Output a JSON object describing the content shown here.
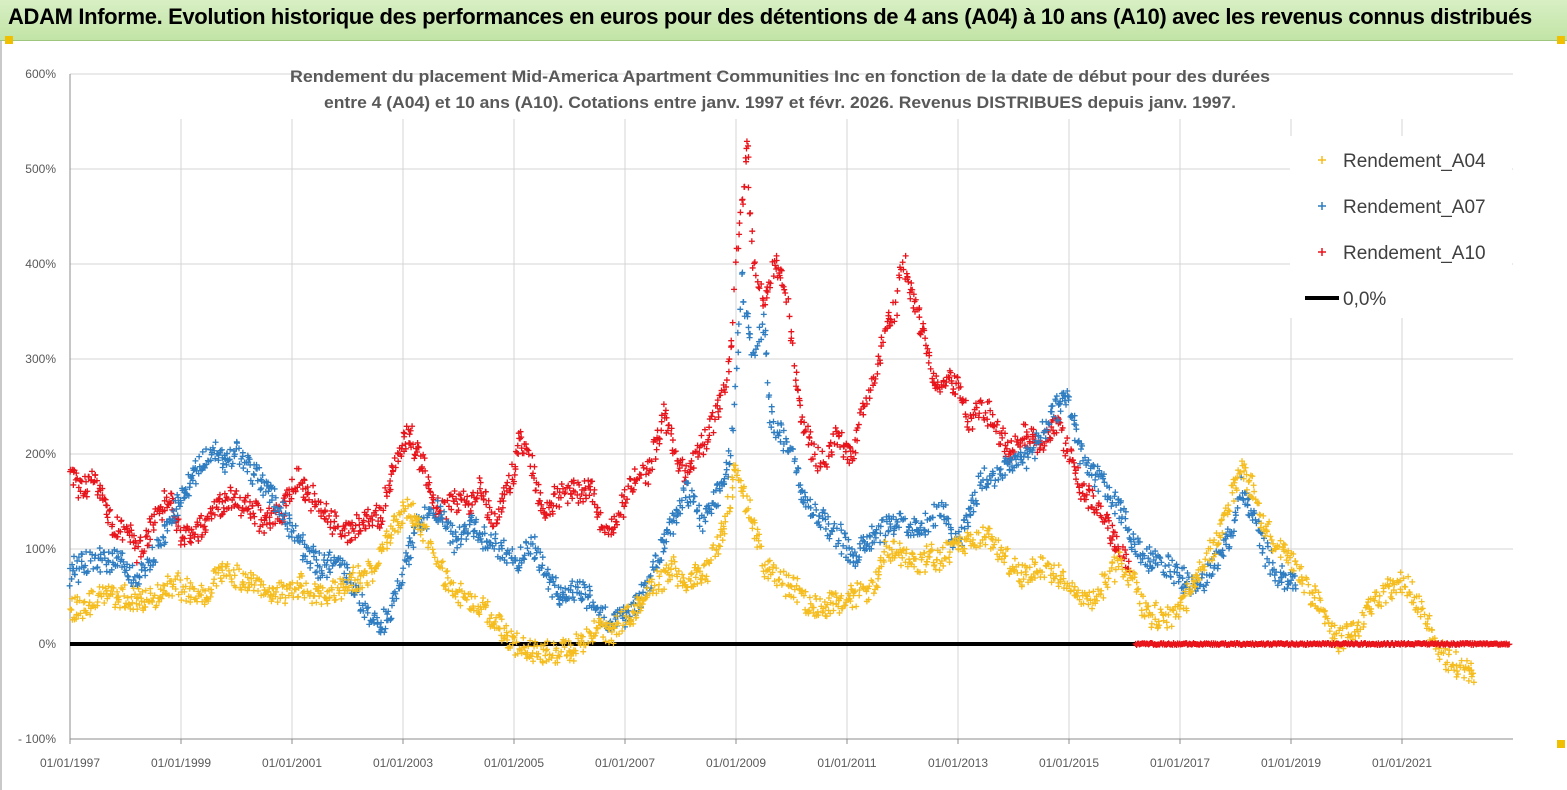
{
  "banner": {
    "title": "ADAM Informe. Evolution historique des performances en euros pour des détentions de 4 ans (A04) à 10 ans (A10) avec les revenus connus distribués"
  },
  "chart_data": {
    "type": "scatter",
    "title_lines": [
      "Rendement du placement Mid-America Apartment Communities Inc en fonction de la date de début pour des durées",
      "entre 4 (A04) et 10 ans (A10).  Cotations entre janv. 1997 et févr. 2026. Revenus DISTRIBUES depuis janv. 1997."
    ],
    "y_ticks": [
      "- 100%",
      "0%",
      "100%",
      "200%",
      "300%",
      "400%",
      "500%",
      "600%"
    ],
    "y_tick_values": [
      -100,
      0,
      100,
      200,
      300,
      400,
      500,
      600
    ],
    "ylim": [
      -100,
      600
    ],
    "x_ticks": [
      "01/01/1997",
      "01/01/1999",
      "01/01/2001",
      "01/01/2003",
      "01/01/2005",
      "01/01/2007",
      "01/01/2009",
      "01/01/2011",
      "01/01/2013",
      "01/01/2015",
      "01/01/2017",
      "01/01/2019",
      "01/01/2021"
    ],
    "x_tick_years": [
      1997,
      1999,
      2001,
      2003,
      2005,
      2007,
      2009,
      2011,
      2013,
      2015,
      2017,
      2019,
      2021
    ],
    "xlim": [
      1997.0,
      2023.0
    ],
    "legend_position": "top-right",
    "series": [
      {
        "name": "Rendement_A04",
        "color": "#f5bd1f",
        "marker": "+",
        "points": [
          [
            1997.0,
            35
          ],
          [
            1997.3,
            40
          ],
          [
            1997.6,
            55
          ],
          [
            1997.9,
            50
          ],
          [
            1998.2,
            45
          ],
          [
            1998.5,
            48
          ],
          [
            1998.8,
            62
          ],
          [
            1999.1,
            58
          ],
          [
            1999.4,
            50
          ],
          [
            1999.7,
            75
          ],
          [
            2000.0,
            72
          ],
          [
            2000.3,
            65
          ],
          [
            2000.6,
            55
          ],
          [
            2000.9,
            58
          ],
          [
            2001.2,
            62
          ],
          [
            2001.5,
            50
          ],
          [
            2001.8,
            55
          ],
          [
            2002.1,
            68
          ],
          [
            2002.4,
            75
          ],
          [
            2002.7,
            105
          ],
          [
            2002.9,
            130
          ],
          [
            2003.1,
            145
          ],
          [
            2003.3,
            120
          ],
          [
            2003.5,
            110
          ],
          [
            2003.7,
            75
          ],
          [
            2003.9,
            55
          ],
          [
            2004.1,
            50
          ],
          [
            2004.3,
            40
          ],
          [
            2004.5,
            35
          ],
          [
            2004.7,
            20
          ],
          [
            2004.9,
            5
          ],
          [
            2005.1,
            0
          ],
          [
            2005.3,
            -5
          ],
          [
            2005.5,
            -8
          ],
          [
            2005.7,
            -10
          ],
          [
            2005.9,
            -5
          ],
          [
            2006.1,
            -2
          ],
          [
            2006.3,
            5
          ],
          [
            2006.5,
            15
          ],
          [
            2006.7,
            10
          ],
          [
            2006.9,
            20
          ],
          [
            2007.1,
            30
          ],
          [
            2007.3,
            45
          ],
          [
            2007.5,
            60
          ],
          [
            2007.7,
            70
          ],
          [
            2007.9,
            80
          ],
          [
            2008.1,
            65
          ],
          [
            2008.3,
            75
          ],
          [
            2008.5,
            80
          ],
          [
            2008.7,
            110
          ],
          [
            2008.9,
            150
          ],
          [
            2009.0,
            190
          ],
          [
            2009.1,
            160
          ],
          [
            2009.3,
            130
          ],
          [
            2009.5,
            80
          ],
          [
            2009.7,
            75
          ],
          [
            2009.9,
            65
          ],
          [
            2010.1,
            55
          ],
          [
            2010.3,
            40
          ],
          [
            2010.5,
            38
          ],
          [
            2010.7,
            42
          ],
          [
            2010.9,
            45
          ],
          [
            2011.1,
            50
          ],
          [
            2011.3,
            55
          ],
          [
            2011.5,
            65
          ],
          [
            2011.7,
            100
          ],
          [
            2011.9,
            95
          ],
          [
            2012.1,
            90
          ],
          [
            2012.3,
            85
          ],
          [
            2012.5,
            95
          ],
          [
            2012.7,
            90
          ],
          [
            2012.9,
            100
          ],
          [
            2013.1,
            105
          ],
          [
            2013.3,
            110
          ],
          [
            2013.5,
            120
          ],
          [
            2013.7,
            100
          ],
          [
            2013.9,
            85
          ],
          [
            2014.1,
            70
          ],
          [
            2014.3,
            75
          ],
          [
            2014.5,
            85
          ],
          [
            2014.7,
            75
          ],
          [
            2014.9,
            65
          ],
          [
            2015.1,
            55
          ],
          [
            2015.3,
            45
          ],
          [
            2015.5,
            55
          ],
          [
            2015.7,
            70
          ],
          [
            2015.9,
            85
          ],
          [
            2016.1,
            75
          ],
          [
            2016.3,
            45
          ],
          [
            2016.5,
            30
          ],
          [
            2016.7,
            25
          ],
          [
            2016.9,
            35
          ],
          [
            2017.1,
            45
          ],
          [
            2017.3,
            70
          ],
          [
            2017.5,
            95
          ],
          [
            2017.7,
            110
          ],
          [
            2017.9,
            150
          ],
          [
            2018.1,
            185
          ],
          [
            2018.3,
            165
          ],
          [
            2018.5,
            125
          ],
          [
            2018.7,
            105
          ],
          [
            2018.9,
            95
          ],
          [
            2019.1,
            85
          ],
          [
            2019.3,
            60
          ],
          [
            2019.5,
            40
          ],
          [
            2019.7,
            15
          ],
          [
            2019.9,
            5
          ],
          [
            2020.1,
            10
          ],
          [
            2020.3,
            30
          ],
          [
            2020.5,
            45
          ],
          [
            2020.7,
            55
          ],
          [
            2020.9,
            65
          ],
          [
            2021.1,
            60
          ],
          [
            2021.3,
            45
          ],
          [
            2021.5,
            15
          ],
          [
            2021.7,
            -10
          ],
          [
            2021.9,
            -20
          ],
          [
            2022.1,
            -28
          ],
          [
            2022.3,
            -28
          ]
        ]
      },
      {
        "name": "Rendement_A07",
        "color": "#2f7dc1",
        "marker": "+",
        "points": [
          [
            1997.0,
            75
          ],
          [
            1997.3,
            85
          ],
          [
            1997.6,
            90
          ],
          [
            1997.9,
            85
          ],
          [
            1998.2,
            70
          ],
          [
            1998.5,
            90
          ],
          [
            1998.8,
            130
          ],
          [
            1999.1,
            165
          ],
          [
            1999.4,
            195
          ],
          [
            1999.6,
            205
          ],
          [
            1999.8,
            190
          ],
          [
            2000.0,
            205
          ],
          [
            2000.3,
            180
          ],
          [
            2000.6,
            160
          ],
          [
            2000.9,
            130
          ],
          [
            2001.2,
            100
          ],
          [
            2001.5,
            80
          ],
          [
            2001.8,
            85
          ],
          [
            2002.1,
            60
          ],
          [
            2002.4,
            30
          ],
          [
            2002.6,
            15
          ],
          [
            2002.8,
            40
          ],
          [
            2003.0,
            80
          ],
          [
            2003.3,
            130
          ],
          [
            2003.6,
            140
          ],
          [
            2003.9,
            110
          ],
          [
            2004.2,
            125
          ],
          [
            2004.5,
            110
          ],
          [
            2004.8,
            100
          ],
          [
            2005.1,
            90
          ],
          [
            2005.3,
            110
          ],
          [
            2005.5,
            80
          ],
          [
            2005.7,
            60
          ],
          [
            2005.9,
            50
          ],
          [
            2006.2,
            55
          ],
          [
            2006.5,
            40
          ],
          [
            2006.7,
            20
          ],
          [
            2006.9,
            25
          ],
          [
            2007.2,
            40
          ],
          [
            2007.5,
            75
          ],
          [
            2007.8,
            120
          ],
          [
            2008.1,
            160
          ],
          [
            2008.4,
            130
          ],
          [
            2008.7,
            160
          ],
          [
            2008.9,
            200
          ],
          [
            2009.0,
            280
          ],
          [
            2009.1,
            380
          ],
          [
            2009.3,
            300
          ],
          [
            2009.5,
            340
          ],
          [
            2009.6,
            240
          ],
          [
            2009.8,
            220
          ],
          [
            2010.0,
            210
          ],
          [
            2010.2,
            160
          ],
          [
            2010.4,
            140
          ],
          [
            2010.6,
            130
          ],
          [
            2010.9,
            110
          ],
          [
            2011.1,
            90
          ],
          [
            2011.3,
            105
          ],
          [
            2011.6,
            120
          ],
          [
            2011.9,
            130
          ],
          [
            2012.2,
            120
          ],
          [
            2012.5,
            130
          ],
          [
            2012.7,
            145
          ],
          [
            2012.9,
            110
          ],
          [
            2013.1,
            120
          ],
          [
            2013.4,
            170
          ],
          [
            2013.7,
            180
          ],
          [
            2014.0,
            190
          ],
          [
            2014.3,
            200
          ],
          [
            2014.6,
            230
          ],
          [
            2014.9,
            260
          ],
          [
            2015.0,
            255
          ],
          [
            2015.2,
            200
          ],
          [
            2015.4,
            180
          ],
          [
            2015.6,
            170
          ],
          [
            2015.8,
            150
          ],
          [
            2016.0,
            130
          ],
          [
            2016.2,
            100
          ],
          [
            2016.4,
            90
          ],
          [
            2016.7,
            85
          ],
          [
            2017.0,
            70
          ],
          [
            2017.3,
            60
          ],
          [
            2017.5,
            70
          ],
          [
            2017.8,
            100
          ],
          [
            2018.0,
            130
          ],
          [
            2018.1,
            165
          ],
          [
            2018.3,
            135
          ],
          [
            2018.5,
            100
          ],
          [
            2018.7,
            80
          ],
          [
            2018.9,
            70
          ],
          [
            2019.1,
            60
          ]
        ]
      },
      {
        "name": "Rendement_A10",
        "color": "#e8141b",
        "marker": "+",
        "points": [
          [
            1997.0,
            180
          ],
          [
            1997.2,
            160
          ],
          [
            1997.4,
            175
          ],
          [
            1997.6,
            150
          ],
          [
            1997.8,
            120
          ],
          [
            1998.0,
            125
          ],
          [
            1998.2,
            95
          ],
          [
            1998.5,
            125
          ],
          [
            1998.8,
            160
          ],
          [
            1999.0,
            110
          ],
          [
            1999.3,
            120
          ],
          [
            1999.6,
            140
          ],
          [
            1999.9,
            150
          ],
          [
            2000.2,
            145
          ],
          [
            2000.5,
            130
          ],
          [
            2000.8,
            140
          ],
          [
            2001.1,
            175
          ],
          [
            2001.4,
            150
          ],
          [
            2001.7,
            130
          ],
          [
            2002.0,
            115
          ],
          [
            2002.3,
            130
          ],
          [
            2002.6,
            135
          ],
          [
            2002.8,
            180
          ],
          [
            2003.1,
            225
          ],
          [
            2003.4,
            180
          ],
          [
            2003.6,
            140
          ],
          [
            2003.9,
            150
          ],
          [
            2004.2,
            145
          ],
          [
            2004.4,
            170
          ],
          [
            2004.6,
            130
          ],
          [
            2004.8,
            150
          ],
          [
            2005.0,
            180
          ],
          [
            2005.1,
            215
          ],
          [
            2005.3,
            190
          ],
          [
            2005.5,
            140
          ],
          [
            2005.8,
            155
          ],
          [
            2006.1,
            160
          ],
          [
            2006.4,
            165
          ],
          [
            2006.6,
            115
          ],
          [
            2006.9,
            135
          ],
          [
            2007.1,
            170
          ],
          [
            2007.4,
            180
          ],
          [
            2007.7,
            240
          ],
          [
            2007.9,
            200
          ],
          [
            2008.1,
            180
          ],
          [
            2008.4,
            210
          ],
          [
            2008.7,
            250
          ],
          [
            2008.9,
            300
          ],
          [
            2009.0,
            400
          ],
          [
            2009.1,
            460
          ],
          [
            2009.2,
            530
          ],
          [
            2009.3,
            400
          ],
          [
            2009.5,
            360
          ],
          [
            2009.7,
            400
          ],
          [
            2009.9,
            370
          ],
          [
            2010.0,
            320
          ],
          [
            2010.2,
            230
          ],
          [
            2010.4,
            200
          ],
          [
            2010.6,
            190
          ],
          [
            2010.8,
            220
          ],
          [
            2011.1,
            200
          ],
          [
            2011.3,
            250
          ],
          [
            2011.5,
            280
          ],
          [
            2011.7,
            330
          ],
          [
            2011.9,
            360
          ],
          [
            2012.0,
            410
          ],
          [
            2012.2,
            360
          ],
          [
            2012.4,
            320
          ],
          [
            2012.6,
            270
          ],
          [
            2012.8,
            280
          ],
          [
            2013.0,
            270
          ],
          [
            2013.2,
            230
          ],
          [
            2013.4,
            250
          ],
          [
            2013.6,
            240
          ],
          [
            2013.9,
            200
          ],
          [
            2014.2,
            220
          ],
          [
            2014.5,
            210
          ],
          [
            2014.8,
            230
          ],
          [
            2015.0,
            200
          ],
          [
            2015.2,
            165
          ],
          [
            2015.4,
            150
          ],
          [
            2015.6,
            140
          ],
          [
            2015.8,
            110
          ],
          [
            2016.0,
            95
          ],
          [
            2016.1,
            85
          ]
        ]
      },
      {
        "name": "0,0%",
        "color": "#000000",
        "marker": "line",
        "points": [
          [
            1997.0,
            0
          ],
          [
            2016.2,
            0
          ]
        ]
      }
    ],
    "zero_red_segment": {
      "name": "Rendement_A10",
      "x_start": 2016.2,
      "x_end": 2022.95,
      "value": 0
    }
  }
}
